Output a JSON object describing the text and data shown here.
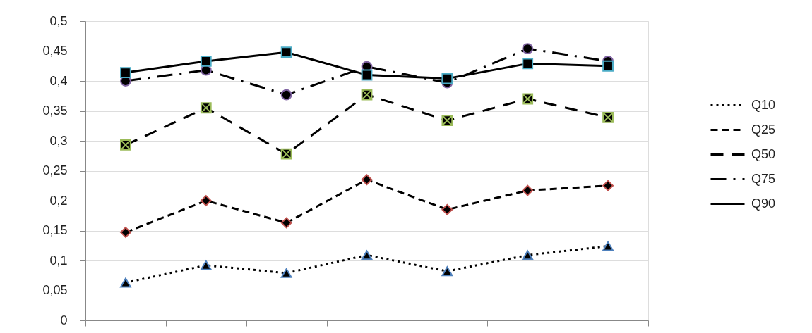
{
  "chart_data": {
    "type": "line",
    "categories": [
      null,
      null,
      null,
      null,
      null,
      null,
      null
    ],
    "ylim": [
      0,
      0.5
    ],
    "yticks": [
      0,
      {
        "value": 0.05,
        "label": "0,05"
      },
      {
        "value": 0.1,
        "label": "0,1"
      },
      {
        "value": 0.15,
        "label": "0,15"
      },
      {
        "value": 0.2,
        "label": "0,2"
      },
      {
        "value": 0.25,
        "label": "0,25"
      },
      {
        "value": 0.3,
        "label": "0,3"
      },
      {
        "value": 0.35,
        "label": "0,35"
      },
      {
        "value": 0.4,
        "label": "0,4"
      },
      {
        "value": 0.45,
        "label": "0,45"
      },
      {
        "value": 0.5,
        "label": "0,5"
      }
    ],
    "grid": "y",
    "legend": "right",
    "tick_labels": "y",
    "series": [
      {
        "name": "Q10",
        "color": "#000000",
        "marker": "triangle",
        "colors": [
          "#4f81bd",
          "#4f81bd",
          "#4f81bd",
          "#4f81bd",
          "#4f81bd",
          "#4f81bd",
          "#4f81bd"
        ],
        "line_style": "dotted",
        "values": [
          0.063,
          0.092,
          0.079,
          0.109,
          0.082,
          0.109,
          0.124
        ]
      },
      {
        "name": "Q25",
        "color": "#000000",
        "marker": "diamond",
        "colors": [
          "#c0504d",
          "#c0504d",
          "#c0504d",
          "#c0504d",
          "#c0504d",
          "#c0504d",
          "#c0504d"
        ],
        "line_style": "dashed",
        "values": [
          0.147,
          0.2,
          0.163,
          0.235,
          0.185,
          0.217,
          0.225
        ]
      },
      {
        "name": "Q50",
        "color": "#000000",
        "marker": "cross",
        "colors": [
          "#9bbb59",
          "#9bbb59",
          "#9bbb59",
          "#9bbb59",
          "#9bbb59",
          "#9bbb59",
          "#9bbb59"
        ],
        "line_style": "longdash",
        "values": [
          0.293,
          0.355,
          0.278,
          0.377,
          0.334,
          0.37,
          0.339
        ]
      },
      {
        "name": "Q75",
        "color": "#000000",
        "marker": "circle",
        "colors": [
          "#8064a2",
          "#8064a2",
          "#8064a2",
          "#8064a2",
          "#8064a2",
          "#8064a2",
          "#8064a2"
        ],
        "line_style": "dashdot",
        "values": [
          0.4,
          0.418,
          0.377,
          0.424,
          0.397,
          0.454,
          0.433
        ]
      },
      {
        "name": "Q90",
        "color": "#000000",
        "marker": "square",
        "colors": [
          "#4bacc6",
          "#4bacc6",
          "#4bacc6",
          "#4bacc6",
          "#4bacc6",
          "#4bacc6",
          "#4bacc6"
        ],
        "line_style": "solid",
        "values": [
          0.414,
          0.433,
          0.448,
          0.41,
          0.404,
          0.429,
          0.425
        ]
      }
    ]
  }
}
